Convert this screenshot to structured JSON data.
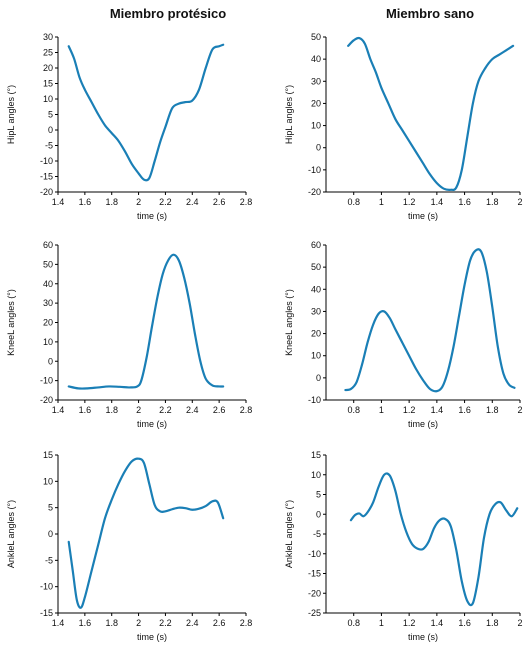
{
  "column_titles": {
    "left": "Miembro protésico",
    "right": "Miembro sano"
  },
  "line_color": "#1a7fb6",
  "chart_data": [
    {
      "type": "line",
      "panel": "hip-prosthetic",
      "ylabel": "HipL angles (°)",
      "xlabel": "time (s)",
      "xlim": [
        1.4,
        2.8
      ],
      "ylim": [
        -20,
        30
      ],
      "xticks": [
        1.4,
        1.6,
        1.8,
        2,
        2.2,
        2.4,
        2.6,
        2.8
      ],
      "xtick_labels": [
        "1.4",
        "1.6",
        "1.8",
        "2",
        "2.2",
        "2.4",
        "2.6",
        "2.8"
      ],
      "yticks": [
        -20,
        -15,
        -10,
        -5,
        0,
        5,
        10,
        15,
        20,
        25,
        30
      ],
      "ytick_labels": [
        "-20",
        "-15",
        "-10",
        "-5",
        "0",
        "5",
        "10",
        "15",
        "20",
        "25",
        "30"
      ],
      "x": [
        1.48,
        1.52,
        1.56,
        1.6,
        1.65,
        1.7,
        1.75,
        1.8,
        1.85,
        1.9,
        1.95,
        2.0,
        2.04,
        2.08,
        2.12,
        2.16,
        2.2,
        2.25,
        2.3,
        2.35,
        2.4,
        2.45,
        2.5,
        2.55,
        2.6,
        2.63
      ],
      "y": [
        27,
        23,
        17,
        13,
        9,
        5,
        1.5,
        -1,
        -3.5,
        -7,
        -11,
        -14,
        -16,
        -15.5,
        -10,
        -4,
        1,
        7,
        8.5,
        9,
        9.5,
        13,
        20,
        26,
        27,
        27.5
      ]
    },
    {
      "type": "line",
      "panel": "hip-healthy",
      "ylabel": "HipL angles (°)",
      "xlabel": "time (s)",
      "xlim": [
        0.6,
        2.0
      ],
      "ylim": [
        -20,
        50
      ],
      "xticks": [
        0.8,
        1,
        1.2,
        1.4,
        1.6,
        1.8,
        2
      ],
      "xtick_labels": [
        "0.8",
        "1",
        "1.2",
        "1.4",
        "1.6",
        "1.8",
        "2"
      ],
      "yticks": [
        -20,
        -10,
        0,
        10,
        20,
        30,
        40,
        50
      ],
      "ytick_labels": [
        "-20",
        "-10",
        "0",
        "10",
        "20",
        "30",
        "40",
        "50"
      ],
      "x": [
        0.76,
        0.8,
        0.84,
        0.88,
        0.92,
        0.96,
        1.0,
        1.05,
        1.1,
        1.15,
        1.2,
        1.25,
        1.3,
        1.35,
        1.4,
        1.45,
        1.5,
        1.54,
        1.58,
        1.62,
        1.66,
        1.7,
        1.75,
        1.8,
        1.85,
        1.9,
        1.95
      ],
      "y": [
        46,
        48.5,
        49.5,
        47,
        40,
        34,
        27,
        20,
        13,
        8,
        3,
        -2,
        -7,
        -12,
        -16,
        -18.5,
        -19,
        -18,
        -10,
        5,
        20,
        30,
        36,
        40,
        42,
        44,
        46
      ]
    },
    {
      "type": "line",
      "panel": "knee-prosthetic",
      "ylabel": "KneeL angles (°)",
      "xlabel": "time (s)",
      "xlim": [
        1.4,
        2.8
      ],
      "ylim": [
        -20,
        60
      ],
      "xticks": [
        1.4,
        1.6,
        1.8,
        2,
        2.2,
        2.4,
        2.6,
        2.8
      ],
      "xtick_labels": [
        "1.4",
        "1.6",
        "1.8",
        "2",
        "2.2",
        "2.4",
        "2.6",
        "2.8"
      ],
      "yticks": [
        -20,
        -10,
        0,
        10,
        20,
        30,
        40,
        50,
        60
      ],
      "ytick_labels": [
        "-20",
        "-10",
        "0",
        "10",
        "20",
        "30",
        "40",
        "50",
        "60"
      ],
      "x": [
        1.48,
        1.55,
        1.62,
        1.7,
        1.78,
        1.86,
        1.94,
        1.99,
        2.02,
        2.06,
        2.1,
        2.14,
        2.18,
        2.22,
        2.26,
        2.3,
        2.34,
        2.38,
        2.42,
        2.46,
        2.5,
        2.55,
        2.6,
        2.63
      ],
      "y": [
        -13,
        -14,
        -14,
        -13.5,
        -13,
        -13.2,
        -13.5,
        -13,
        -10,
        2,
        18,
        33,
        45,
        52,
        55,
        52,
        43,
        30,
        14,
        0,
        -9,
        -12.5,
        -13,
        -13
      ]
    },
    {
      "type": "line",
      "panel": "knee-healthy",
      "ylabel": "KneeL angles (°)",
      "xlabel": "time (s)",
      "xlim": [
        0.6,
        2.0
      ],
      "ylim": [
        -10,
        60
      ],
      "xticks": [
        0.8,
        1,
        1.2,
        1.4,
        1.6,
        1.8,
        2
      ],
      "xtick_labels": [
        "0.8",
        "1",
        "1.2",
        "1.4",
        "1.6",
        "1.8",
        "2"
      ],
      "yticks": [
        -10,
        0,
        10,
        20,
        30,
        40,
        50,
        60
      ],
      "ytick_labels": [
        "-10",
        "0",
        "10",
        "20",
        "30",
        "40",
        "50",
        "60"
      ],
      "x": [
        0.74,
        0.78,
        0.82,
        0.86,
        0.9,
        0.94,
        0.98,
        1.02,
        1.06,
        1.1,
        1.15,
        1.2,
        1.25,
        1.3,
        1.35,
        1.4,
        1.44,
        1.48,
        1.52,
        1.56,
        1.6,
        1.64,
        1.68,
        1.72,
        1.76,
        1.8,
        1.84,
        1.88,
        1.92,
        1.96
      ],
      "y": [
        -5.5,
        -5,
        -2,
        6,
        16,
        24,
        29,
        30,
        27,
        22,
        16,
        10,
        4,
        -1,
        -5,
        -6,
        -4,
        3,
        14,
        28,
        42,
        53,
        57.5,
        57,
        48,
        32,
        14,
        2,
        -3,
        -4.5
      ]
    },
    {
      "type": "line",
      "panel": "ankle-prosthetic",
      "ylabel": "AnkleL angles (°)",
      "xlabel": "time (s)",
      "xlim": [
        1.4,
        2.8
      ],
      "ylim": [
        -15,
        15
      ],
      "xticks": [
        1.4,
        1.6,
        1.8,
        2,
        2.2,
        2.4,
        2.6,
        2.8
      ],
      "xtick_labels": [
        "1.4",
        "1.6",
        "1.8",
        "2",
        "2.2",
        "2.4",
        "2.6",
        "2.8"
      ],
      "yticks": [
        -15,
        -10,
        -5,
        0,
        5,
        10,
        15
      ],
      "ytick_labels": [
        "-15",
        "-10",
        "-5",
        "0",
        "5",
        "10",
        "15"
      ],
      "x": [
        1.48,
        1.51,
        1.54,
        1.57,
        1.6,
        1.65,
        1.7,
        1.75,
        1.8,
        1.85,
        1.9,
        1.95,
        2.0,
        2.04,
        2.08,
        2.12,
        2.16,
        2.2,
        2.25,
        2.3,
        2.35,
        2.4,
        2.45,
        2.5,
        2.55,
        2.59,
        2.63
      ],
      "y": [
        -1.5,
        -7,
        -12.5,
        -14,
        -12,
        -7,
        -2,
        3,
        6.5,
        9.5,
        12,
        13.8,
        14.3,
        13.5,
        9.5,
        5.5,
        4.3,
        4.3,
        4.7,
        5,
        4.9,
        4.6,
        4.8,
        5.3,
        6.2,
        6,
        3
      ]
    },
    {
      "type": "line",
      "panel": "ankle-healthy",
      "ylabel": "AnkleL angles (°)",
      "xlabel": "time (s)",
      "xlim": [
        0.6,
        2.0
      ],
      "ylim": [
        -25,
        15
      ],
      "xticks": [
        0.8,
        1,
        1.2,
        1.4,
        1.6,
        1.8,
        2
      ],
      "xtick_labels": [
        "0.8",
        "1",
        "1.2",
        "1.4",
        "1.6",
        "1.8",
        "2"
      ],
      "yticks": [
        -25,
        -20,
        -15,
        -10,
        -5,
        0,
        5,
        10,
        15
      ],
      "ytick_labels": [
        "-25",
        "-20",
        "-15",
        "-10",
        "-5",
        "0",
        "5",
        "10",
        "15"
      ],
      "x": [
        0.78,
        0.81,
        0.84,
        0.87,
        0.9,
        0.94,
        0.98,
        1.02,
        1.06,
        1.1,
        1.14,
        1.18,
        1.22,
        1.26,
        1.3,
        1.34,
        1.38,
        1.42,
        1.46,
        1.5,
        1.54,
        1.58,
        1.62,
        1.66,
        1.7,
        1.74,
        1.78,
        1.82,
        1.86,
        1.9,
        1.94,
        1.98
      ],
      "y": [
        -1.5,
        -0.2,
        0.2,
        -0.5,
        0.5,
        3,
        7,
        10,
        9.8,
        6,
        0,
        -4.5,
        -7.5,
        -8.7,
        -8.8,
        -7,
        -3.5,
        -1.5,
        -1.2,
        -3,
        -9,
        -17,
        -22,
        -22.5,
        -16,
        -6,
        0,
        2.5,
        3,
        1,
        -0.5,
        1.5
      ]
    }
  ]
}
